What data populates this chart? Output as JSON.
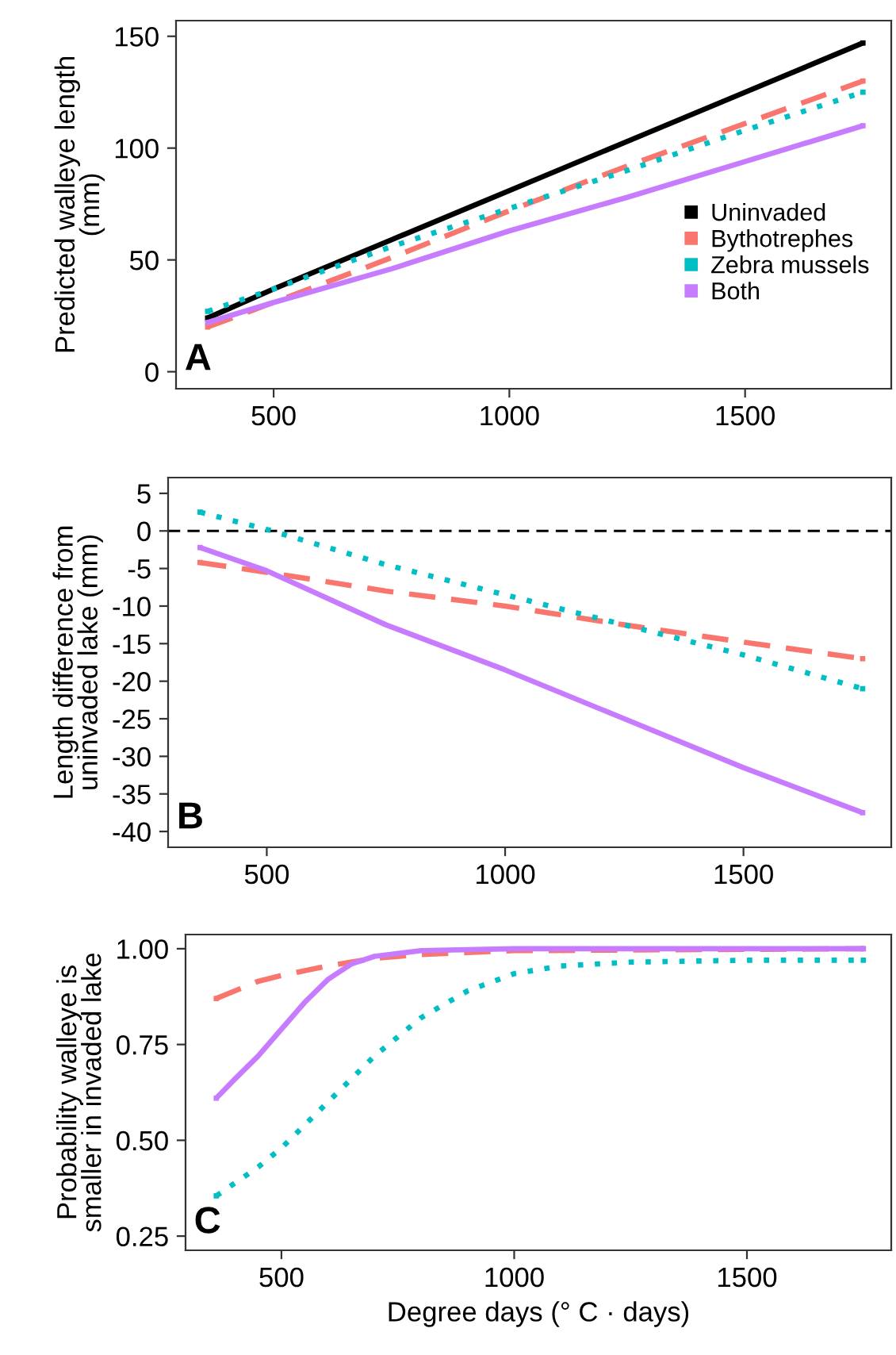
{
  "chart_data": [
    {
      "type": "line",
      "ylabel": "Predicted walleye length\n(mm)",
      "xlim": [
        293,
        1810
      ],
      "xticks": [
        500,
        1000,
        1500
      ],
      "ylim": [
        -7.6,
        157
      ],
      "yticks": [
        0,
        50,
        100,
        150
      ],
      "grid": false,
      "legend": "bottom right",
      "annotations": [
        "A"
      ],
      "x": [
        360,
        500,
        750,
        1000,
        1250,
        1500,
        1750
      ],
      "series": [
        {
          "name": "Uninvaded",
          "color": "#000000",
          "line_style": "solid",
          "values": [
            24,
            37,
            59,
            81,
            103,
            125,
            147
          ]
        },
        {
          "name": "Bythotrephes",
          "color": "#f8766d",
          "line_style": "dashed",
          "values": [
            20,
            31,
            51,
            72,
            92,
            111,
            130
          ]
        },
        {
          "name": "Zebra mussels",
          "color": "#00bfc4",
          "line_style": "dotted",
          "values": [
            27,
            37,
            56,
            73,
            90,
            108,
            125
          ]
        },
        {
          "name": "Both",
          "color": "#c77cff",
          "line_style": "solid",
          "values": [
            22,
            31,
            46,
            63,
            78,
            94,
            110
          ]
        }
      ]
    },
    {
      "type": "line",
      "ylabel": "Length difference from\nuninvaded lake (mm)",
      "xlim": [
        293,
        1810
      ],
      "xticks": [
        500,
        1000,
        1500
      ],
      "ylim": [
        -42.1,
        7.1
      ],
      "yticks": [
        5,
        0,
        -5,
        -10,
        -15,
        -20,
        -25,
        -30,
        -35,
        -40
      ],
      "grid": false,
      "legend": false,
      "annotations": [
        "B"
      ],
      "ref_lines": [
        {
          "axis": "y",
          "value": 0,
          "color": "#000000",
          "line_style": "dashed"
        }
      ],
      "x": [
        360,
        500,
        750,
        1000,
        1250,
        1500,
        1750
      ],
      "series": [
        {
          "color": "#f8766d",
          "line_style": "dashed",
          "values": [
            -4.2,
            -5.5,
            -8,
            -10,
            -12.5,
            -14.8,
            -17
          ]
        },
        {
          "color": "#00bfc4",
          "line_style": "dotted",
          "values": [
            2.5,
            0.2,
            -4.5,
            -8.5,
            -12.5,
            -16.5,
            -21
          ]
        },
        {
          "color": "#c77cff",
          "line_style": "solid",
          "values": [
            -2.2,
            -5.3,
            -12.5,
            -18.5,
            -25,
            -31.5,
            -37.5
          ]
        }
      ]
    },
    {
      "type": "line",
      "ylabel": "Probability walleye is\nsmaller in invaded lake",
      "xlabel": "Degree days (° C · days)",
      "xlim": [
        294,
        1810
      ],
      "xticks": [
        500,
        1000,
        1500
      ],
      "ylim": [
        0.213,
        1.037
      ],
      "yticks": [
        {
          "value": 0.25,
          "label": "0.25"
        },
        {
          "value": 0.5,
          "label": "0.50"
        },
        {
          "value": 0.75,
          "label": "0.75"
        },
        {
          "value": 1.0,
          "label": "1.00"
        }
      ],
      "grid": false,
      "legend": false,
      "annotations": [
        "C"
      ],
      "series": [
        {
          "color": "#f8766d",
          "line_style": "dashed",
          "x": [
            360,
            450,
            500,
            600,
            700,
            800,
            900,
            1000,
            1750
          ],
          "values": [
            0.87,
            0.915,
            0.93,
            0.955,
            0.975,
            0.985,
            0.99,
            0.995,
            1.0
          ]
        },
        {
          "color": "#00bfc4",
          "line_style": "dotted",
          "x": [
            360,
            450,
            500,
            600,
            700,
            800,
            900,
            1000,
            1100,
            1250,
            1500,
            1750
          ],
          "values": [
            0.355,
            0.43,
            0.48,
            0.6,
            0.72,
            0.82,
            0.89,
            0.935,
            0.955,
            0.965,
            0.97,
            0.97
          ]
        },
        {
          "color": "#c77cff",
          "line_style": "solid",
          "x": [
            360,
            400,
            450,
            500,
            550,
            600,
            650,
            700,
            800,
            1000,
            1750
          ],
          "values": [
            0.61,
            0.66,
            0.72,
            0.79,
            0.86,
            0.92,
            0.96,
            0.98,
            0.995,
            1.0,
            1.0
          ]
        }
      ]
    }
  ]
}
